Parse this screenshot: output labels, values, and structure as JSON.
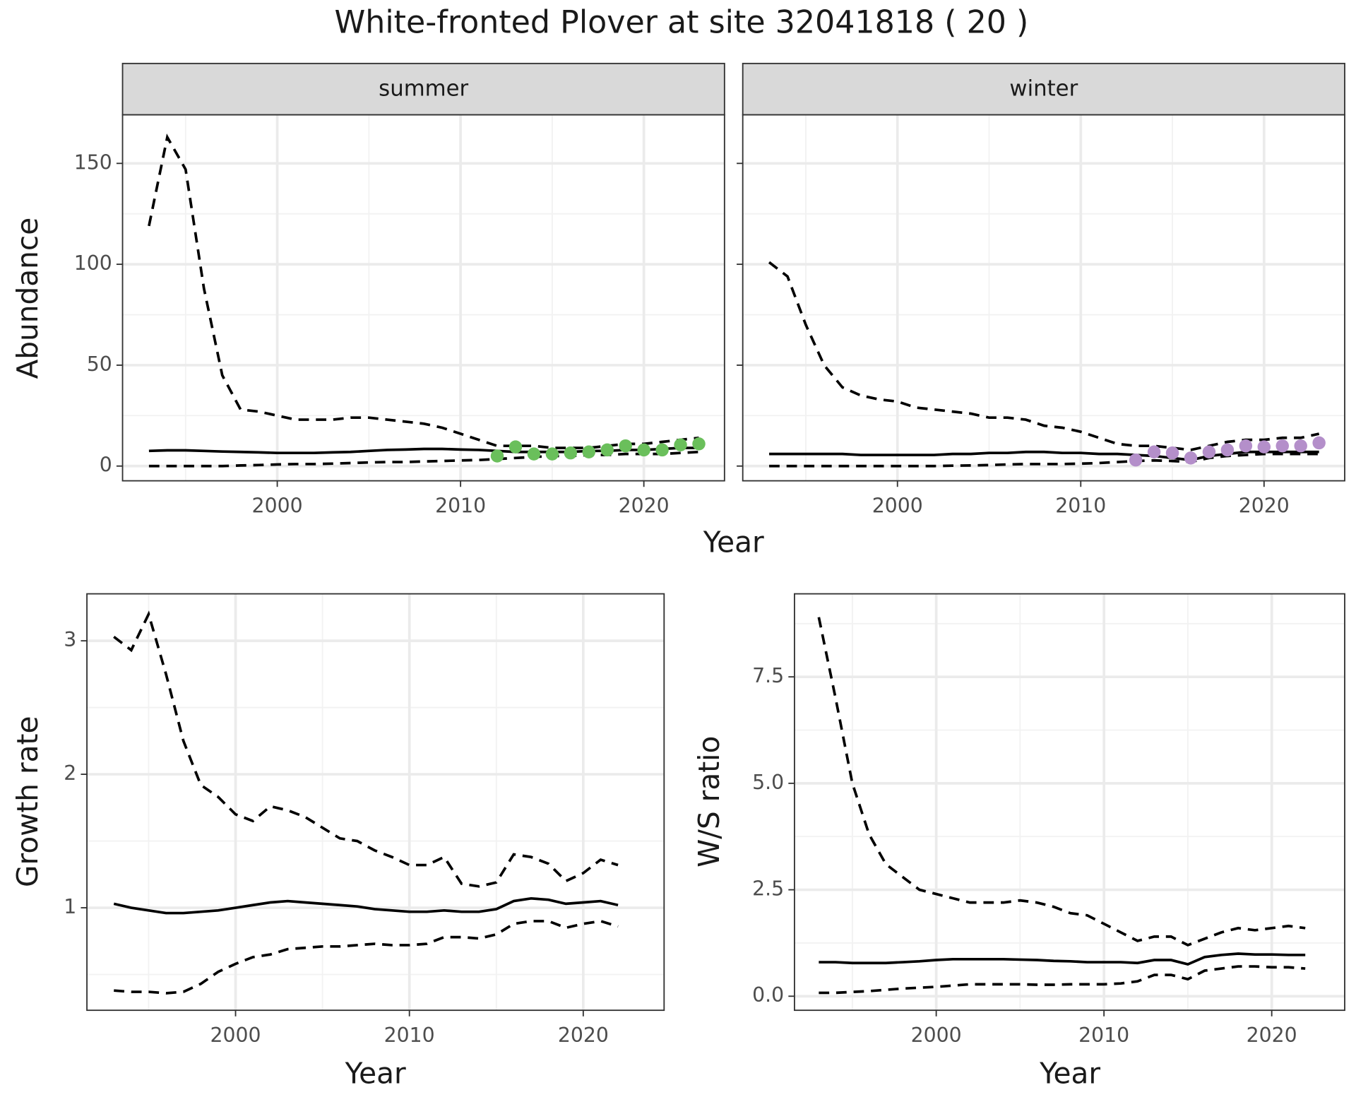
{
  "chart_data": [
    {
      "type": "line",
      "title": "White-fronted Plover at site 32041818 ( 20 )",
      "x_label": "Year",
      "y_label": "Abundance",
      "xlim": [
        1991.56,
        2024.4
      ],
      "ylim": [
        -7.3,
        174.1
      ],
      "xticks": [
        2000,
        2010,
        2020
      ],
      "yticks": [
        0,
        50,
        100,
        150
      ],
      "minor_xticks": [
        1995,
        2005,
        2015
      ],
      "minor_yticks": [
        25,
        75,
        125
      ],
      "grid": true,
      "x": [
        1993,
        1994,
        1995,
        1996,
        1997,
        1998,
        1999,
        2000,
        2001,
        2002,
        2003,
        2004,
        2005,
        2006,
        2007,
        2008,
        2009,
        2010,
        2011,
        2012,
        2013,
        2014,
        2015,
        2016,
        2017,
        2018,
        2019,
        2020,
        2021,
        2022,
        2023
      ],
      "panels": [
        {
          "label": "summer",
          "series": [
            {
              "linestyle": "dashed",
              "color": "#000000",
              "values": [
                119,
                163,
                147,
                88,
                45,
                28,
                27,
                25,
                23,
                23,
                23,
                24,
                24,
                23,
                22,
                21,
                19,
                16,
                13,
                10,
                10,
                10,
                9,
                9,
                9,
                10,
                11,
                11,
                12,
                13,
                14
              ]
            },
            {
              "linestyle": "solid",
              "color": "#000000",
              "values": [
                7.5,
                7.8,
                7.8,
                7.5,
                7.2,
                7,
                6.8,
                6.5,
                6.5,
                6.5,
                6.8,
                7,
                7.5,
                8,
                8.2,
                8.5,
                8.5,
                8.2,
                8,
                7.5,
                7,
                7,
                7,
                7,
                7.5,
                7.5,
                8,
                8,
                8.5,
                9,
                9
              ]
            },
            {
              "linestyle": "dashed",
              "color": "#000000",
              "values": [
                0,
                0,
                0,
                0,
                0,
                0.3,
                0.5,
                0.8,
                1,
                1,
                1.2,
                1.5,
                1.8,
                2,
                2,
                2.3,
                2.5,
                2.8,
                3,
                3.5,
                4,
                4.5,
                5,
                5,
                5.5,
                5.5,
                6,
                6,
                6,
                6.5,
                7
              ]
            },
            {
              "type": "scatter",
              "color": "#6abf5b",
              "x": [
                2012,
                2013,
                2014,
                2015,
                2016,
                2017,
                2018,
                2019,
                2020,
                2021,
                2022,
                2023
              ],
              "values": [
                5,
                9.5,
                6,
                6,
                6.5,
                7,
                8,
                10,
                8,
                8,
                10.5,
                11
              ]
            }
          ]
        },
        {
          "label": "winter",
          "series": [
            {
              "linestyle": "dashed",
              "color": "#000000",
              "values": [
                101,
                94,
                70,
                50,
                39,
                35,
                33,
                32,
                29,
                28,
                27,
                26,
                24,
                24,
                23,
                20,
                19,
                17,
                14,
                11,
                10,
                10,
                9,
                8,
                10,
                12,
                13,
                13,
                14,
                14,
                16
              ]
            },
            {
              "linestyle": "solid",
              "color": "#000000",
              "values": [
                6,
                6,
                6,
                6,
                6,
                5.5,
                5.5,
                5.5,
                5.5,
                5.5,
                6,
                6,
                6.5,
                6.5,
                7,
                7,
                6.5,
                6.5,
                6,
                6,
                5.5,
                5,
                4,
                3,
                5,
                6,
                7,
                7,
                7,
                7,
                7
              ]
            },
            {
              "linestyle": "dashed",
              "color": "#000000",
              "values": [
                0,
                0,
                0,
                0,
                0,
                0,
                0,
                0,
                0,
                0,
                0.2,
                0.3,
                0.5,
                0.8,
                1,
                1,
                1,
                1.2,
                1.5,
                2,
                2.5,
                2.8,
                2.5,
                2,
                4,
                5,
                5.5,
                6,
                6,
                6,
                6
              ]
            },
            {
              "type": "scatter",
              "color": "#b48fca",
              "x": [
                2013,
                2014,
                2015,
                2016,
                2017,
                2018,
                2019,
                2020,
                2021,
                2022,
                2023
              ],
              "values": [
                3,
                7,
                6.5,
                4,
                7,
                8,
                10,
                9.5,
                10,
                10,
                11.5
              ]
            }
          ]
        }
      ]
    },
    {
      "type": "line",
      "x_label": "Year",
      "y_label": "Growth rate",
      "xlim": [
        1991.45,
        2024.65
      ],
      "ylim": [
        0.232,
        3.352
      ],
      "xticks": [
        2000,
        2010,
        2020
      ],
      "yticks": [
        1,
        2,
        3
      ],
      "minor_xticks": [
        1995,
        2005,
        2015
      ],
      "minor_yticks": [
        0.5,
        1.5,
        2.5
      ],
      "grid": true,
      "x": [
        1993,
        1994,
        1995,
        1996,
        1997,
        1998,
        1999,
        2000,
        2001,
        2002,
        2003,
        2004,
        2005,
        2006,
        2007,
        2008,
        2009,
        2010,
        2011,
        2012,
        2013,
        2014,
        2015,
        2016,
        2017,
        2018,
        2019,
        2020,
        2021,
        2022
      ],
      "series": [
        {
          "linestyle": "dashed",
          "color": "#000000",
          "values": [
            3.03,
            2.93,
            3.2,
            2.75,
            2.25,
            1.92,
            1.83,
            1.7,
            1.65,
            1.76,
            1.73,
            1.68,
            1.6,
            1.52,
            1.5,
            1.43,
            1.38,
            1.32,
            1.32,
            1.38,
            1.18,
            1.16,
            1.19,
            1.4,
            1.38,
            1.33,
            1.2,
            1.26,
            1.36,
            1.32
          ]
        },
        {
          "linestyle": "solid",
          "color": "#000000",
          "values": [
            1.03,
            1.0,
            0.98,
            0.96,
            0.96,
            0.97,
            0.98,
            1.0,
            1.02,
            1.04,
            1.05,
            1.04,
            1.03,
            1.02,
            1.01,
            0.99,
            0.98,
            0.97,
            0.97,
            0.98,
            0.97,
            0.97,
            0.99,
            1.05,
            1.07,
            1.06,
            1.03,
            1.04,
            1.05,
            1.02
          ]
        },
        {
          "linestyle": "dashed",
          "color": "#000000",
          "values": [
            0.38,
            0.37,
            0.37,
            0.36,
            0.37,
            0.43,
            0.52,
            0.58,
            0.63,
            0.65,
            0.69,
            0.7,
            0.71,
            0.71,
            0.72,
            0.73,
            0.72,
            0.72,
            0.73,
            0.78,
            0.78,
            0.77,
            0.8,
            0.88,
            0.9,
            0.9,
            0.85,
            0.88,
            0.9,
            0.86
          ]
        }
      ]
    },
    {
      "type": "line",
      "x_label": "Year",
      "y_label": "W/S ratio",
      "xlim": [
        1991.55,
        2024.35
      ],
      "ylim": [
        -0.33,
        9.45
      ],
      "xticks": [
        2000,
        2010,
        2020
      ],
      "yticks": [
        {
          "value": 0,
          "label": "0.0"
        },
        2.5,
        {
          "value": 5,
          "label": "5.0"
        },
        7.5
      ],
      "minor_xticks": [
        1995,
        2005,
        2015
      ],
      "minor_yticks": [
        1.25,
        3.75,
        6.25,
        8.75
      ],
      "grid": true,
      "x": [
        1993,
        1994,
        1995,
        1996,
        1997,
        1998,
        1999,
        2000,
        2001,
        2002,
        2003,
        2004,
        2005,
        2006,
        2007,
        2008,
        2009,
        2010,
        2011,
        2012,
        2013,
        2014,
        2015,
        2016,
        2017,
        2018,
        2019,
        2020,
        2021,
        2022
      ],
      "series": [
        {
          "linestyle": "dashed",
          "color": "#000000",
          "values": [
            8.9,
            7.0,
            5.0,
            3.8,
            3.1,
            2.8,
            2.5,
            2.4,
            2.3,
            2.2,
            2.2,
            2.2,
            2.25,
            2.2,
            2.1,
            1.95,
            1.9,
            1.7,
            1.5,
            1.3,
            1.4,
            1.4,
            1.2,
            1.35,
            1.5,
            1.6,
            1.55,
            1.6,
            1.65,
            1.6
          ]
        },
        {
          "linestyle": "solid",
          "color": "#000000",
          "values": [
            0.8,
            0.8,
            0.78,
            0.78,
            0.78,
            0.8,
            0.82,
            0.85,
            0.87,
            0.87,
            0.87,
            0.87,
            0.86,
            0.85,
            0.83,
            0.82,
            0.8,
            0.8,
            0.8,
            0.78,
            0.85,
            0.85,
            0.75,
            0.92,
            0.97,
            1.0,
            0.98,
            0.98,
            0.97,
            0.97
          ]
        },
        {
          "linestyle": "dashed",
          "color": "#000000",
          "values": [
            0.08,
            0.08,
            0.1,
            0.12,
            0.15,
            0.18,
            0.2,
            0.22,
            0.25,
            0.28,
            0.28,
            0.28,
            0.28,
            0.27,
            0.27,
            0.28,
            0.28,
            0.28,
            0.3,
            0.35,
            0.5,
            0.5,
            0.4,
            0.6,
            0.65,
            0.7,
            0.7,
            0.68,
            0.68,
            0.65
          ]
        }
      ]
    }
  ]
}
